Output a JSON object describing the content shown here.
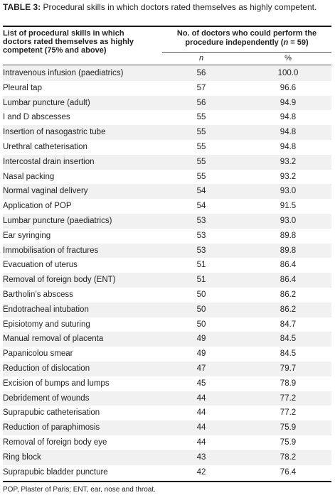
{
  "caption": {
    "label": "TABLE 3:",
    "text": "Procedural skills in which doctors rated themselves as highly competent."
  },
  "header": {
    "col1": "List of procedural skills in which doctors rated themselves as highly competent (75% and above)",
    "col2_line1": "No. of doctors who could perform the",
    "col2_pre": "procedure independently (",
    "col2_n": "n",
    "col2_post": " = 59)",
    "sub_n": "n",
    "sub_pct": "%"
  },
  "rows": [
    {
      "skill": "Intravenous infusion (paediatrics)",
      "n": "56",
      "pct": "100.0"
    },
    {
      "skill": "Pleural tap",
      "n": "57",
      "pct": "96.6"
    },
    {
      "skill": "Lumbar puncture (adult)",
      "n": "56",
      "pct": "94.9"
    },
    {
      "skill": "I and D abscesses",
      "n": "55",
      "pct": "94.8"
    },
    {
      "skill": "Insertion of nasogastric tube",
      "n": "55",
      "pct": "94.8"
    },
    {
      "skill": "Urethral catheterisation",
      "n": "55",
      "pct": "94.8"
    },
    {
      "skill": "Intercostal drain insertion",
      "n": "55",
      "pct": "93.2"
    },
    {
      "skill": "Nasal packing",
      "n": "55",
      "pct": "93.2"
    },
    {
      "skill": "Normal vaginal delivery",
      "n": "54",
      "pct": "93.0"
    },
    {
      "skill": "Application of POP",
      "n": "54",
      "pct": "91.5"
    },
    {
      "skill": "Lumbar puncture (paediatrics)",
      "n": "53",
      "pct": "93.0"
    },
    {
      "skill": "Ear syringing",
      "n": "53",
      "pct": "89.8"
    },
    {
      "skill": "Immobilisation of fractures",
      "n": "53",
      "pct": "89.8"
    },
    {
      "skill": "Evacuation of uterus",
      "n": "51",
      "pct": "86.4"
    },
    {
      "skill": "Removal of foreign body (ENT)",
      "n": "51",
      "pct": "86.4"
    },
    {
      "skill": "Bartholin’s abscess",
      "n": "50",
      "pct": "86.2"
    },
    {
      "skill": "Endotracheal intubation",
      "n": "50",
      "pct": "86.2"
    },
    {
      "skill": "Episiotomy and suturing",
      "n": "50",
      "pct": "84.7"
    },
    {
      "skill": "Manual removal of placenta",
      "n": "49",
      "pct": "84.5"
    },
    {
      "skill": "Papanicolou smear",
      "n": "49",
      "pct": "84.5"
    },
    {
      "skill": "Reduction of dislocation",
      "n": "47",
      "pct": "79.7"
    },
    {
      "skill": "Excision of bumps and lumps",
      "n": "45",
      "pct": "78.9"
    },
    {
      "skill": "Debridement of wounds",
      "n": "44",
      "pct": "77.2"
    },
    {
      "skill": "Suprapubic catheterisation",
      "n": "44",
      "pct": "77.2"
    },
    {
      "skill": "Reduction of paraphimosis",
      "n": "44",
      "pct": "75.9"
    },
    {
      "skill": "Removal of foreign body eye",
      "n": "44",
      "pct": "75.9"
    },
    {
      "skill": "Ring block",
      "n": "43",
      "pct": "78.2"
    },
    {
      "skill": "Suprapubic bladder puncture",
      "n": "42",
      "pct": "76.4"
    }
  ],
  "footnote": "POP, Plaster of Paris; ENT, ear, nose and throat."
}
